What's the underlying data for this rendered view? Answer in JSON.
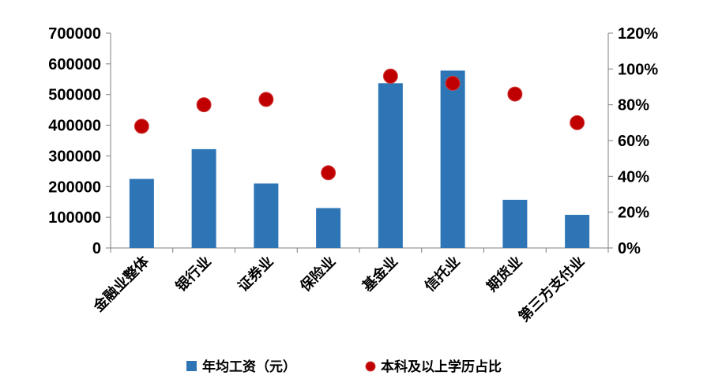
{
  "chart_data": {
    "type": "bar",
    "categories": [
      "金融业整体",
      "银行业",
      "证券业",
      "保险业",
      "基金业",
      "信托业",
      "期货业",
      "第三方支付业"
    ],
    "series": [
      {
        "name": "年均工资（元）",
        "type": "bar",
        "axis": "left",
        "color": "#2E75B6",
        "values": [
          225000,
          322000,
          210000,
          130000,
          537000,
          578000,
          157000,
          108000
        ]
      },
      {
        "name": "本科及以上学历占比",
        "type": "scatter",
        "axis": "right",
        "color": "#C00000",
        "values": [
          0.68,
          0.8,
          0.83,
          0.42,
          0.96,
          0.92,
          0.86,
          0.7
        ]
      }
    ],
    "y_left": {
      "lim": [
        0,
        700000
      ],
      "ticks": [
        "0",
        "100000",
        "200000",
        "300000",
        "400000",
        "500000",
        "600000",
        "700000"
      ]
    },
    "y_right": {
      "lim": [
        0,
        1.2
      ],
      "ticks": [
        "0%",
        "20%",
        "40%",
        "60%",
        "80%",
        "100%",
        "120%"
      ]
    },
    "grid": false,
    "legend_position": "bottom"
  }
}
